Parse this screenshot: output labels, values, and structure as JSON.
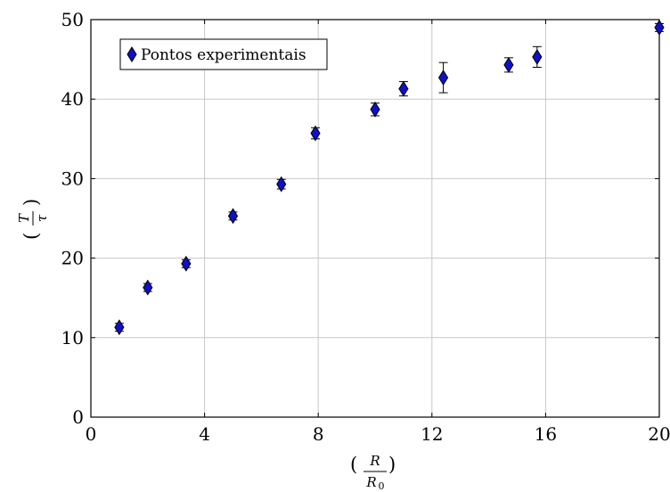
{
  "chart_data": {
    "type": "scatter",
    "title": "",
    "xlabel_parts": {
      "numerator": "R",
      "denominator": "R",
      "denominator_subscript": "0"
    },
    "ylabel_parts": {
      "numerator": "T",
      "denominator": "τ"
    },
    "xlim": [
      0,
      20
    ],
    "ylim": [
      0,
      50
    ],
    "xticks": [
      0,
      4,
      8,
      12,
      16,
      20
    ],
    "yticks": [
      0,
      10,
      20,
      30,
      40,
      50
    ],
    "grid": true,
    "legend_placement": "top-left",
    "series": [
      {
        "name": "Pontos experimentais",
        "color": "#1010c8",
        "marker": "diamond",
        "points": [
          {
            "x": 1.0,
            "y": 11.3,
            "err": 0.5
          },
          {
            "x": 2.0,
            "y": 16.3,
            "err": 0.5
          },
          {
            "x": 3.35,
            "y": 19.3,
            "err": 0.5
          },
          {
            "x": 5.0,
            "y": 25.3,
            "err": 0.5
          },
          {
            "x": 6.7,
            "y": 29.3,
            "err": 0.6
          },
          {
            "x": 7.9,
            "y": 35.7,
            "err": 0.7
          },
          {
            "x": 10.0,
            "y": 38.7,
            "err": 0.8
          },
          {
            "x": 11.0,
            "y": 41.3,
            "err": 0.9
          },
          {
            "x": 12.4,
            "y": 42.7,
            "err": 1.9
          },
          {
            "x": 14.7,
            "y": 44.3,
            "err": 0.9
          },
          {
            "x": 15.7,
            "y": 45.3,
            "err": 1.3
          },
          {
            "x": 20.0,
            "y": 49.0,
            "err": 0.5
          }
        ]
      }
    ]
  }
}
